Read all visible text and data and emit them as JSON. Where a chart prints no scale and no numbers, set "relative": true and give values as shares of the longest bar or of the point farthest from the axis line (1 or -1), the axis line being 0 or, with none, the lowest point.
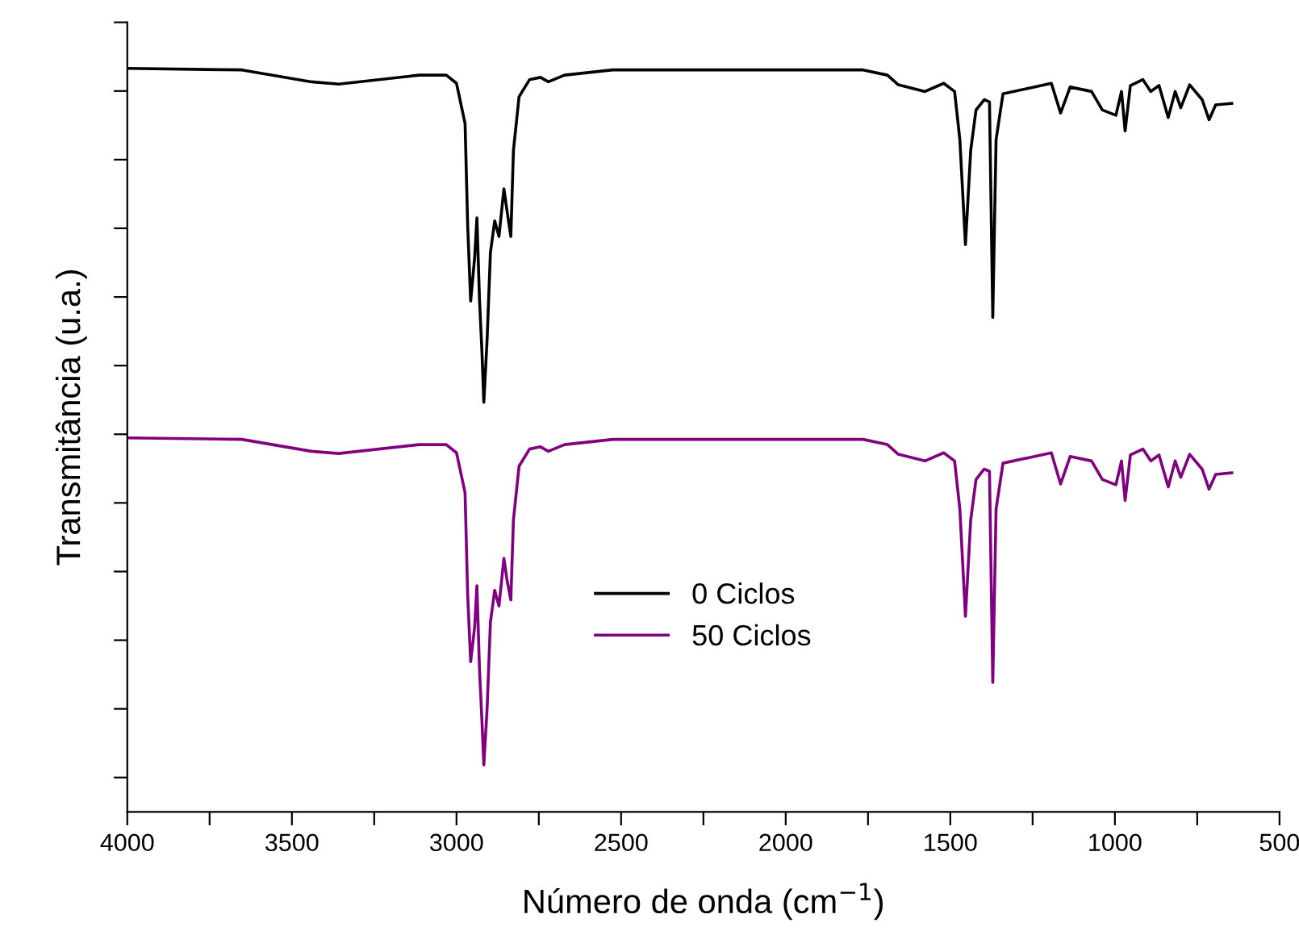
{
  "chart_data": {
    "type": "line",
    "relative": true,
    "xlabel": "Número de onda (cm$^{−1}$)",
    "ylabel": "Transmitância (u.a.)",
    "xlim": [
      4000,
      500
    ],
    "xticks": [
      4000,
      {
        "value": 3750,
        "label": null
      },
      3500,
      {
        "value": 3250,
        "label": null
      },
      3000,
      {
        "value": 2750,
        "label": null
      },
      2500,
      {
        "value": 2250,
        "label": null
      },
      2000,
      {
        "value": 1750,
        "label": null
      },
      1500,
      {
        "value": 1250,
        "label": null
      },
      1000,
      {
        "value": 750,
        "label": null
      },
      500
    ],
    "tick_labels": "x",
    "grid": false,
    "legend": "lower center",
    "marker": "none",
    "line_style": "solid",
    "x": [
      4000,
      3652,
      3441,
      3358,
      3113,
      3031,
      3000,
      2974,
      2966,
      2957,
      2945,
      2938,
      2930,
      2923,
      2917,
      2907,
      2897,
      2884,
      2871,
      2856,
      2847,
      2835,
      2827,
      2810,
      2778,
      2745,
      2721,
      2672,
      2525,
      1765,
      1691,
      1658,
      1577,
      1520,
      1487,
      1471,
      1454,
      1438,
      1422,
      1397,
      1381,
      1371,
      1361,
      1340,
      1266,
      1193,
      1165,
      1136,
      1071,
      1038,
      997,
      980,
      969,
      953,
      915,
      891,
      866,
      838,
      817,
      800,
      773,
      735,
      714,
      694,
      645
    ],
    "series": [
      {
        "name": "0 Ciclos",
        "color": "#000000",
        "values": [
          1.0,
          0.998,
          0.982,
          0.979,
          0.991,
          0.991,
          0.98,
          0.926,
          0.788,
          0.687,
          0.745,
          0.799,
          0.687,
          0.622,
          0.551,
          0.636,
          0.752,
          0.795,
          0.774,
          0.838,
          0.81,
          0.774,
          0.89,
          0.962,
          0.985,
          0.988,
          0.982,
          0.991,
          0.998,
          0.998,
          0.991,
          0.978,
          0.969,
          0.98,
          0.969,
          0.904,
          0.763,
          0.89,
          0.944,
          0.958,
          0.955,
          0.665,
          0.904,
          0.966,
          0.973,
          0.98,
          0.94,
          0.975,
          0.969,
          0.944,
          0.937,
          0.969,
          0.916,
          0.977,
          0.985,
          0.969,
          0.977,
          0.934,
          0.969,
          0.947,
          0.978,
          0.958,
          0.931,
          0.951,
          0.953
        ]
      },
      {
        "name": "50 Ciclos",
        "color": "#800080",
        "values": [
          0.503,
          0.501,
          0.485,
          0.482,
          0.494,
          0.494,
          0.483,
          0.429,
          0.291,
          0.202,
          0.248,
          0.304,
          0.19,
          0.125,
          0.063,
          0.139,
          0.255,
          0.298,
          0.277,
          0.341,
          0.313,
          0.285,
          0.393,
          0.465,
          0.488,
          0.491,
          0.485,
          0.494,
          0.501,
          0.501,
          0.494,
          0.481,
          0.472,
          0.483,
          0.472,
          0.407,
          0.263,
          0.393,
          0.447,
          0.461,
          0.458,
          0.174,
          0.407,
          0.469,
          0.476,
          0.483,
          0.441,
          0.478,
          0.472,
          0.447,
          0.44,
          0.472,
          0.419,
          0.48,
          0.488,
          0.472,
          0.48,
          0.437,
          0.472,
          0.45,
          0.481,
          0.461,
          0.434,
          0.454,
          0.456
        ]
      }
    ]
  }
}
